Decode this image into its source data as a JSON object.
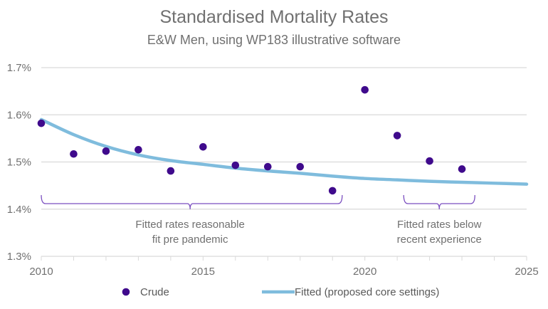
{
  "chart_data": {
    "type": "scatter",
    "title": "Standardised Mortality Rates",
    "subtitle": "E&W Men, using WP183 illustrative software",
    "xlabel": "",
    "ylabel": "",
    "xlim": [
      2010,
      2025
    ],
    "ylim": [
      1.3,
      1.7
    ],
    "x_ticks": [
      2010,
      2015,
      2020,
      2025
    ],
    "x_tick_labels": [
      "2010",
      "2015",
      "2020",
      "2025"
    ],
    "y_ticks": [
      1.3,
      1.4,
      1.5,
      1.6,
      1.7
    ],
    "y_tick_labels": [
      "1.3%",
      "1.4%",
      "1.5%",
      "1.6%",
      "1.7%"
    ],
    "grid": true,
    "legend_position": "bottom",
    "series": [
      {
        "name": "Crude",
        "kind": "scatter",
        "color": "#3F0A8C",
        "x": [
          2010,
          2011,
          2012,
          2013,
          2014,
          2015,
          2016,
          2017,
          2018,
          2019,
          2020,
          2021,
          2022,
          2023
        ],
        "values": [
          1.582,
          1.517,
          1.523,
          1.526,
          1.481,
          1.532,
          1.493,
          1.49,
          1.49,
          1.439,
          1.653,
          1.556,
          1.502,
          1.485
        ]
      },
      {
        "name": "Fitted (proposed core settings)",
        "kind": "line",
        "color": "#7FBCDD",
        "x": [
          2010,
          2011,
          2012,
          2013,
          2014,
          2015,
          2016,
          2017,
          2018,
          2019,
          2020,
          2021,
          2022,
          2023,
          2024,
          2025
        ],
        "values": [
          1.59,
          1.558,
          1.533,
          1.515,
          1.503,
          1.495,
          1.487,
          1.481,
          1.476,
          1.47,
          1.465,
          1.462,
          1.459,
          1.457,
          1.455,
          1.453
        ]
      }
    ],
    "annotations": [
      {
        "text_lines": [
          "Fitted rates reasonable",
          "fit pre pandemic"
        ],
        "bracket_from": 2010,
        "bracket_to": 2019.3,
        "bracket_mid": 2014.6
      },
      {
        "text_lines": [
          "Fitted rates below",
          "recent experience"
        ],
        "bracket_from": 2021.2,
        "bracket_to": 2023.4,
        "bracket_mid": 2022.3
      }
    ],
    "bracket_color": "#7B4FC0"
  }
}
